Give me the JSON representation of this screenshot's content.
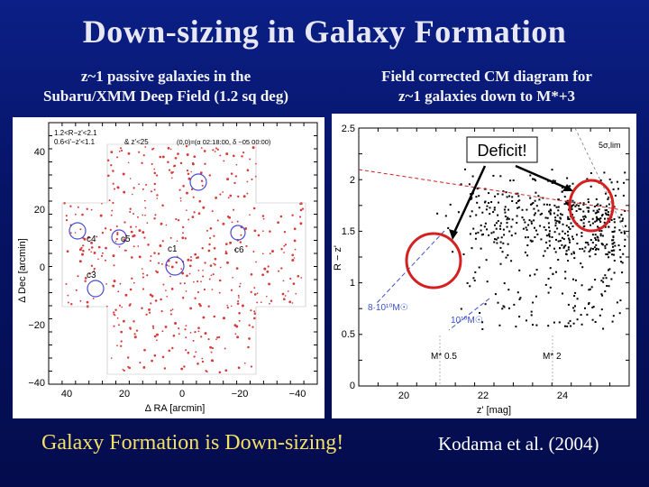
{
  "title": "Down-sizing in Galaxy Formation",
  "left_caption": {
    "line1": "z~1 passive galaxies in the",
    "line2": "Subaru/XMM Deep Field (1.2 sq deg)"
  },
  "right_caption": {
    "line1": "Field corrected CM diagram for",
    "line2": "z~1 galaxies down to M*+3"
  },
  "sky_map": {
    "ylabel": "Δ Dec [arcmin]",
    "xlabel": "Δ RA [arcmin]",
    "x_ticks": [
      "40",
      "20",
      "0",
      "−20",
      "−40"
    ],
    "y_ticks": [
      "40",
      "20",
      "0",
      "−20",
      "−40"
    ],
    "legend_line1": "1.2<R−z'<2.1",
    "legend_line2": "0.6<i'−z'<1.1",
    "legend_line3": "& z'<25",
    "center_coords": "(0,0)=(α 02:18:00, δ −05 00:00)",
    "cluster_labels": [
      "c4",
      "c1",
      "c5",
      "c6",
      "c3"
    ]
  },
  "cm_diagram": {
    "ylabel": "R − z'",
    "xlabel": "z' [mag]",
    "y_ticks": [
      "2.5",
      "2",
      "1.5",
      "1",
      "0.5",
      "0"
    ],
    "x_ticks": [
      "20",
      "22",
      "24"
    ],
    "annotation_lim": "5σ,lim",
    "mass_label_1": "8·10¹⁰M☉",
    "mass_label_2": "10¹⁰M☉",
    "mstar_label_1": "M* 0.5",
    "mstar_label_2": "M* 2",
    "deficit_label": "Deficit!"
  },
  "bottom_left_text": "Galaxy Formation is Down-sizing!",
  "bottom_right_text": "Kodama et al. (2004)",
  "colors": {
    "title": "#e8e8f4",
    "highlight": "#f4e066",
    "circle_red": "#d42020",
    "arrow": "#000000"
  }
}
